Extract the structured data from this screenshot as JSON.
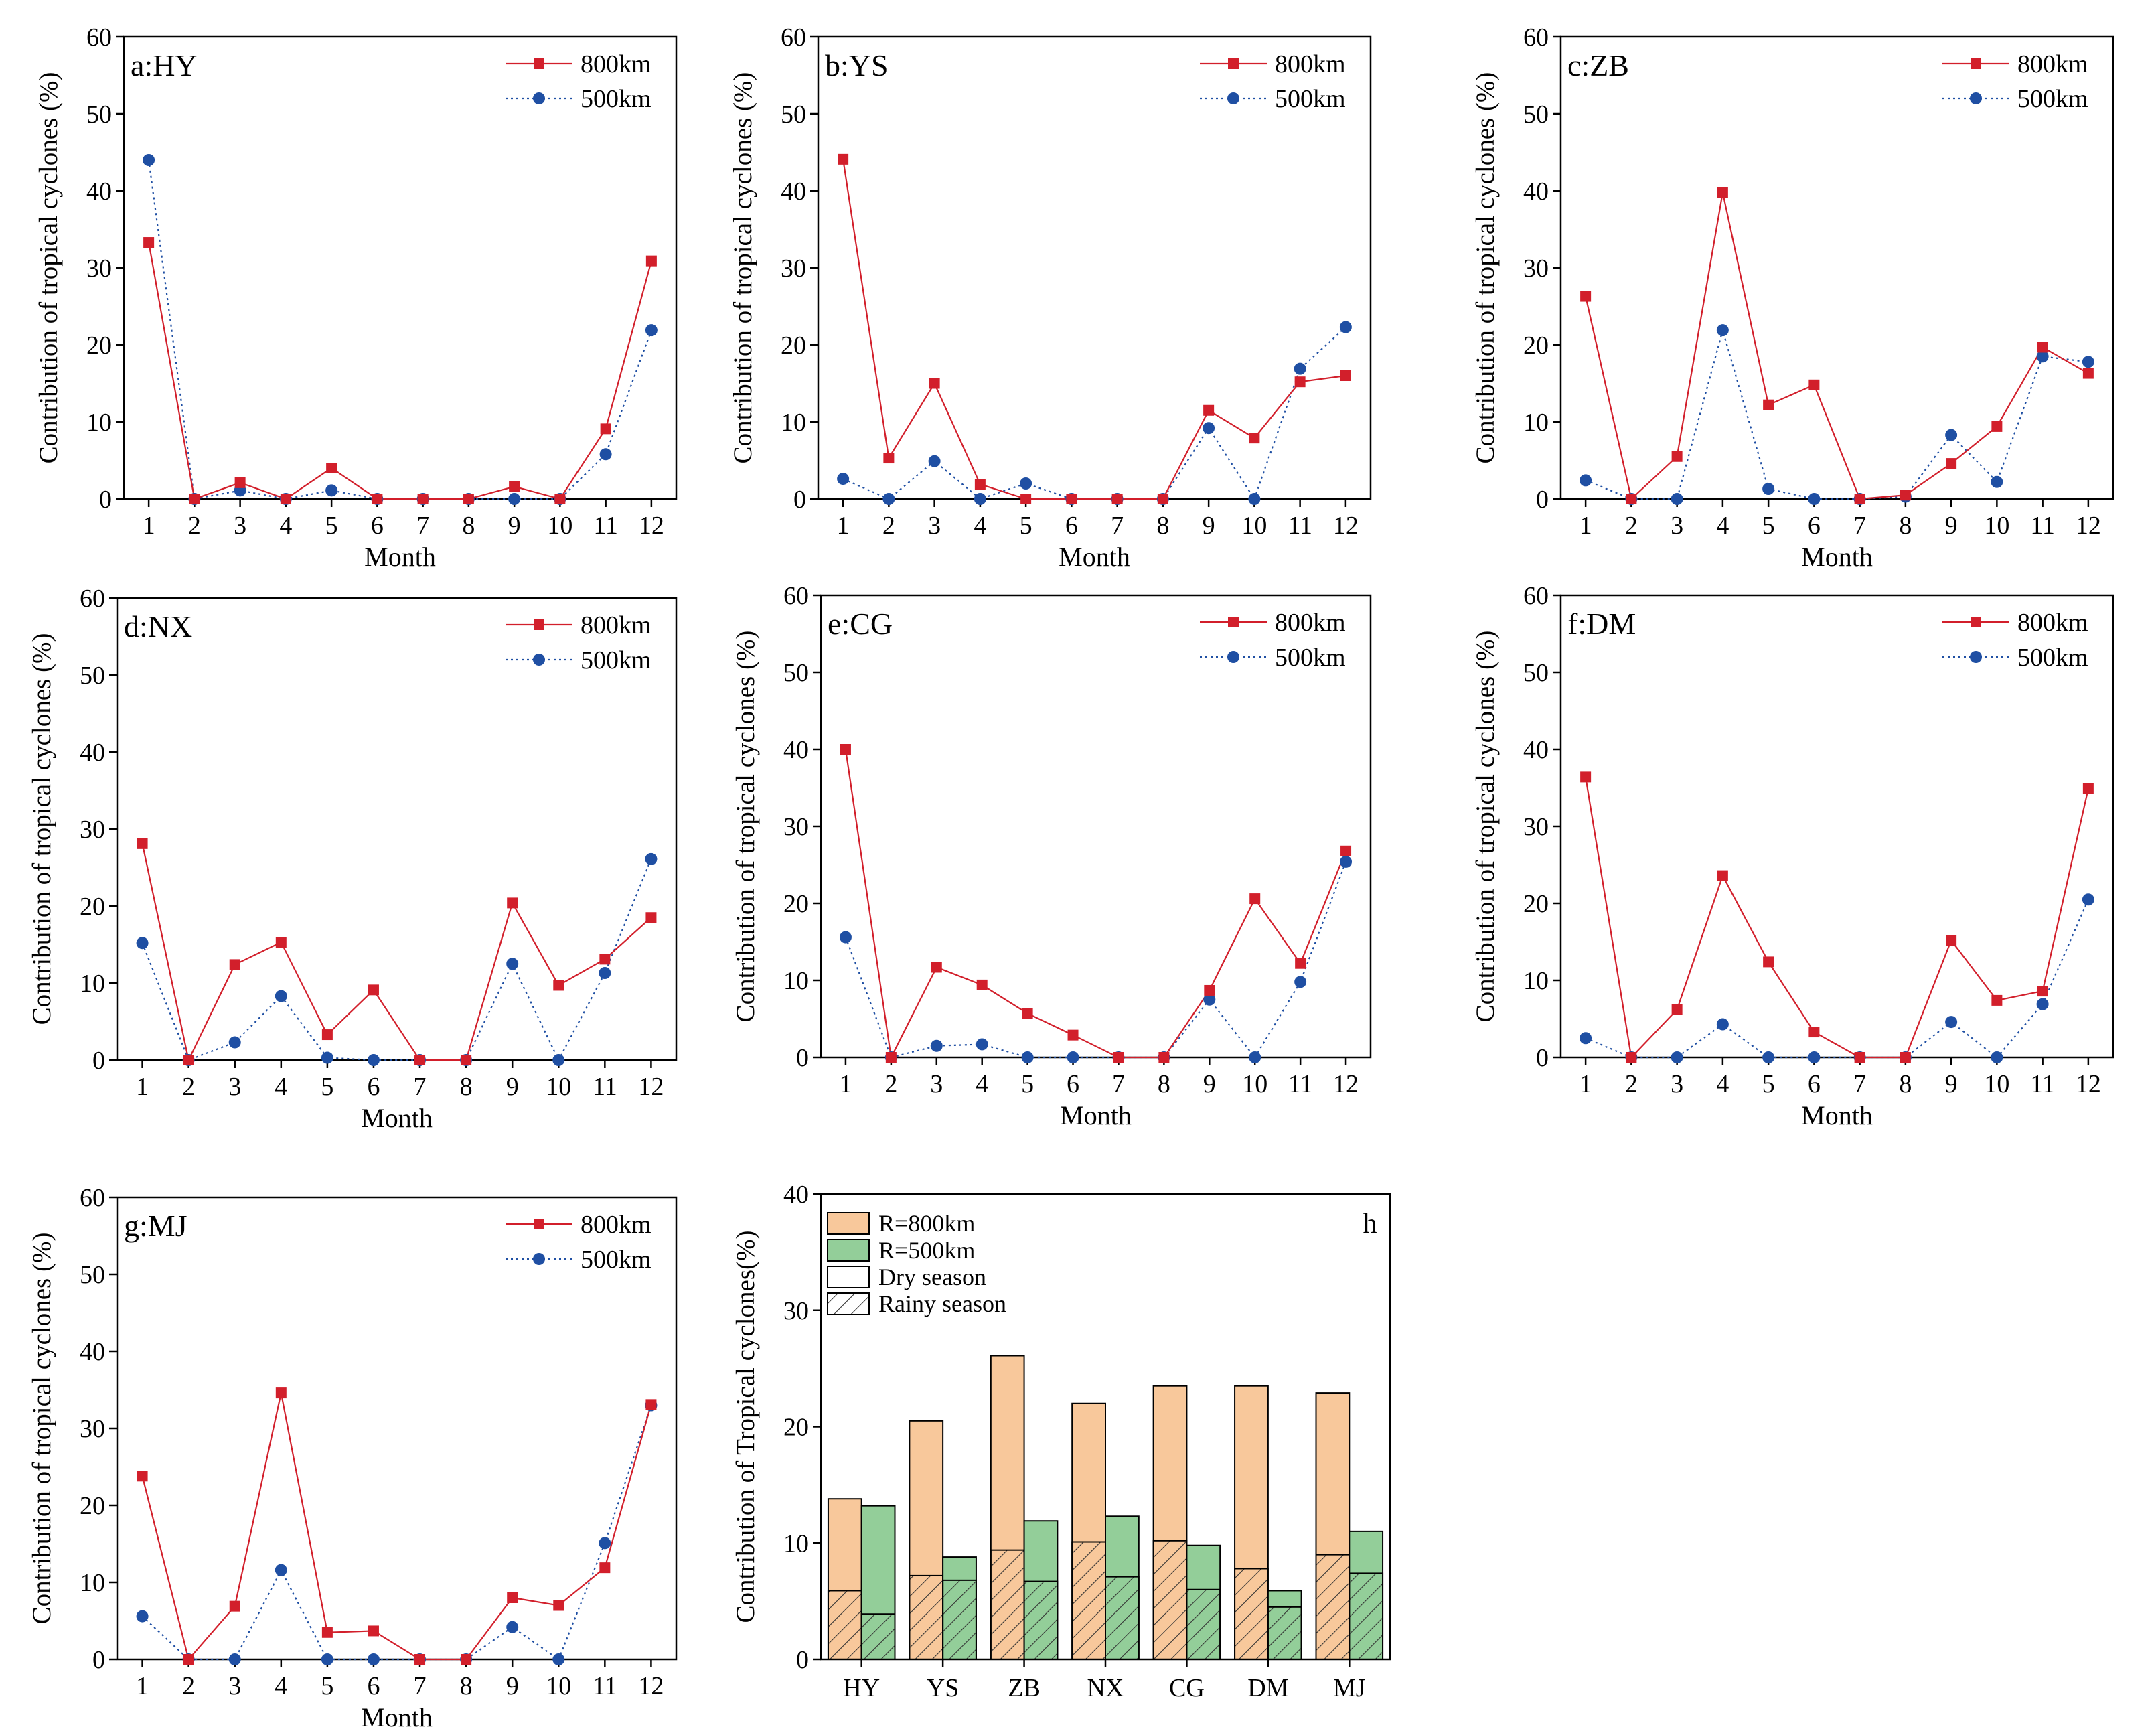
{
  "chart_data": [
    {
      "type": "line",
      "panel": "a:HY",
      "xlabel": "Month",
      "ylabel": "Contribution of tropical cyclones (%)",
      "x": [
        1,
        2,
        3,
        4,
        5,
        6,
        7,
        8,
        9,
        10,
        11,
        12
      ],
      "ylim": [
        0,
        60
      ],
      "yticks": [
        0,
        10,
        20,
        30,
        40,
        50,
        60
      ],
      "legend_position": "top-right",
      "series": [
        {
          "name": "800km",
          "values": [
            33.3,
            0,
            2.1,
            0,
            4.0,
            0,
            0,
            0,
            1.6,
            0,
            9.1,
            30.9
          ]
        },
        {
          "name": "500km",
          "values": [
            44.0,
            0,
            1.1,
            0,
            1.1,
            0,
            0,
            0,
            0,
            0,
            5.8,
            21.9
          ]
        }
      ]
    },
    {
      "type": "line",
      "panel": "b:YS",
      "xlabel": "Month",
      "ylabel": "Contribution of tropical cyclones (%)",
      "x": [
        1,
        2,
        3,
        4,
        5,
        6,
        7,
        8,
        9,
        10,
        11,
        12
      ],
      "ylim": [
        0,
        60
      ],
      "yticks": [
        0,
        10,
        20,
        30,
        40,
        50,
        60
      ],
      "legend_position": "top-right",
      "series": [
        {
          "name": "800km",
          "values": [
            44.1,
            5.3,
            15.0,
            1.9,
            0,
            0,
            0,
            0,
            11.5,
            7.9,
            15.2,
            16.0
          ]
        },
        {
          "name": "500km",
          "values": [
            2.6,
            0,
            4.9,
            0,
            2.0,
            0,
            0,
            0,
            9.2,
            0,
            16.9,
            22.3
          ]
        }
      ]
    },
    {
      "type": "line",
      "panel": "c:ZB",
      "xlabel": "Month",
      "ylabel": "Contribution of tropical cyclones (%)",
      "x": [
        1,
        2,
        3,
        4,
        5,
        6,
        7,
        8,
        9,
        10,
        11,
        12
      ],
      "ylim": [
        0,
        60
      ],
      "yticks": [
        0,
        10,
        20,
        30,
        40,
        50,
        60
      ],
      "legend_position": "top-right",
      "series": [
        {
          "name": "800km",
          "values": [
            26.3,
            0,
            5.5,
            39.8,
            12.2,
            14.8,
            0,
            0.5,
            4.6,
            9.4,
            19.7,
            16.3
          ]
        },
        {
          "name": "500km",
          "values": [
            2.4,
            0,
            0,
            21.9,
            1.3,
            0,
            0,
            0.3,
            8.3,
            2.2,
            18.5,
            17.8
          ]
        }
      ]
    },
    {
      "type": "line",
      "panel": "d:NX",
      "xlabel": "Month",
      "ylabel": "Contribution of tropical cyclones (%)",
      "x": [
        1,
        2,
        3,
        4,
        5,
        6,
        7,
        8,
        9,
        10,
        11,
        12
      ],
      "ylim": [
        0,
        60
      ],
      "yticks": [
        0,
        10,
        20,
        30,
        40,
        50,
        60
      ],
      "legend_position": "top-right",
      "series": [
        {
          "name": "800km",
          "values": [
            28.1,
            0,
            12.4,
            15.3,
            3.3,
            9.1,
            0,
            0,
            20.4,
            9.7,
            13.1,
            18.5
          ]
        },
        {
          "name": "500km",
          "values": [
            15.2,
            0,
            2.3,
            8.3,
            0.3,
            0,
            0,
            0,
            12.5,
            0,
            11.3,
            26.1
          ]
        }
      ]
    },
    {
      "type": "line",
      "panel": "e:CG",
      "xlabel": "Month",
      "ylabel": "Contribution of tropical cyclones (%)",
      "x": [
        1,
        2,
        3,
        4,
        5,
        6,
        7,
        8,
        9,
        10,
        11,
        12
      ],
      "ylim": [
        0,
        60
      ],
      "yticks": [
        0,
        10,
        20,
        30,
        40,
        50,
        60
      ],
      "legend_position": "top-right",
      "series": [
        {
          "name": "800km",
          "values": [
            40.0,
            0,
            11.7,
            9.4,
            5.7,
            2.9,
            0,
            0,
            8.7,
            20.6,
            12.2,
            26.8
          ]
        },
        {
          "name": "500km",
          "values": [
            15.6,
            0,
            1.5,
            1.7,
            0,
            0,
            0,
            0,
            7.5,
            0,
            9.8,
            25.4
          ]
        }
      ]
    },
    {
      "type": "line",
      "panel": "f:DM",
      "xlabel": "Month",
      "ylabel": "Contribution of tropical cyclones (%)",
      "x": [
        1,
        2,
        3,
        4,
        5,
        6,
        7,
        8,
        9,
        10,
        11,
        12
      ],
      "ylim": [
        0,
        60
      ],
      "yticks": [
        0,
        10,
        20,
        30,
        40,
        50,
        60
      ],
      "legend_position": "top-right",
      "series": [
        {
          "name": "800km",
          "values": [
            36.4,
            0,
            6.2,
            23.6,
            12.4,
            3.3,
            0,
            0,
            15.2,
            7.4,
            8.6,
            34.9
          ]
        },
        {
          "name": "500km",
          "values": [
            2.5,
            0,
            0,
            4.3,
            0,
            0,
            0,
            0,
            4.6,
            0,
            6.9,
            20.5
          ]
        }
      ]
    },
    {
      "type": "line",
      "panel": "g:MJ",
      "xlabel": "Month",
      "ylabel": "Contribution of tropical cyclones (%)",
      "x": [
        1,
        2,
        3,
        4,
        5,
        6,
        7,
        8,
        9,
        10,
        11,
        12
      ],
      "ylim": [
        0,
        60
      ],
      "yticks": [
        0,
        10,
        20,
        30,
        40,
        50,
        60
      ],
      "legend_position": "top-right",
      "series": [
        {
          "name": "800km",
          "values": [
            23.8,
            0,
            6.9,
            34.6,
            3.5,
            3.7,
            0,
            0,
            8.0,
            7.0,
            11.9,
            33.1
          ]
        },
        {
          "name": "500km",
          "values": [
            5.6,
            0,
            0,
            11.6,
            0,
            0,
            0,
            0,
            4.2,
            0,
            15.1,
            33.0
          ]
        }
      ]
    },
    {
      "type": "bar",
      "panel": "h",
      "ylabel": "Contribution of Tropical cyclones(%)",
      "categories": [
        "HY",
        "YS",
        "ZB",
        "NX",
        "CG",
        "DM",
        "MJ"
      ],
      "ylim": [
        0,
        40
      ],
      "yticks": [
        0,
        10,
        20,
        30,
        40
      ],
      "legend_position": "top-left",
      "legend": [
        "R=800km",
        "R=500km",
        "Dry season",
        "Rainy season"
      ],
      "series": [
        {
          "name": "R=800km",
          "values": [
            13.8,
            20.5,
            26.1,
            22.0,
            23.5,
            23.5,
            22.9
          ],
          "rainy_season_values": [
            5.9,
            7.2,
            9.4,
            10.1,
            10.2,
            7.8,
            9.0
          ]
        },
        {
          "name": "R=500km",
          "values": [
            13.2,
            8.8,
            11.9,
            12.3,
            9.8,
            5.9,
            11.0
          ],
          "rainy_season_values": [
            3.9,
            6.8,
            6.7,
            7.1,
            6.0,
            4.5,
            7.4
          ]
        }
      ]
    }
  ],
  "colors": {
    "line_800": "#d21f2b",
    "line_500": "#1f4fa3",
    "bar_800": "#f8c89b",
    "bar_500": "#93ce99"
  }
}
